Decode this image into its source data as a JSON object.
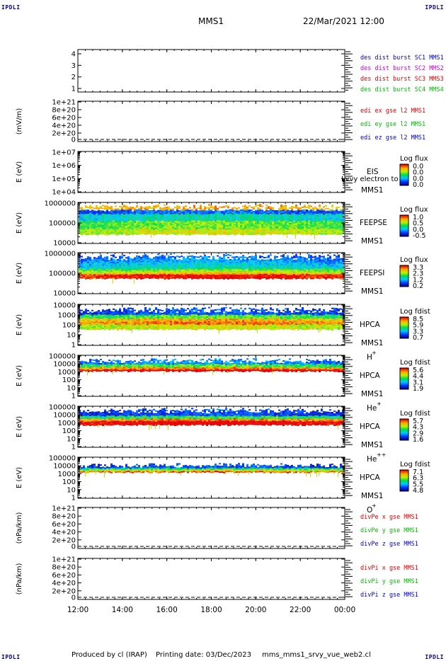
{
  "corner_labels": [
    "IPDLI",
    "IPDLI",
    "IPDLI",
    "IPDLI"
  ],
  "header": {
    "spacecraft": "MMS1",
    "datetime": "22/Mar/2021 12:00"
  },
  "footer": {
    "produced_by": "Produced by cl (IRAP)",
    "printing_date": "Printing date: 03/Dec/2023",
    "script": "mms_mms1_srvy_vue_web2.cl"
  },
  "colors": {
    "blue": "#0000cc",
    "magenta": "#cc00cc",
    "red": "#dd0000",
    "green": "#00bb00"
  },
  "chart_data": {
    "type": "heatmap",
    "x_tick_labels": [
      "12:00",
      "14:00",
      "16:00",
      "18:00",
      "20:00",
      "22:00",
      "00:00"
    ],
    "x_range_hours": [
      12,
      24
    ],
    "panels": [
      {
        "id": "p1",
        "kind": "line",
        "ylabel": "",
        "ytick_labels": [
          "4",
          "3",
          "2",
          "1"
        ],
        "legend": [
          {
            "text": "des dist burst SC1 MMS1",
            "color": "#0000cc"
          },
          {
            "text": "des dist burst SC2 MMS2",
            "color": "#cc00cc"
          },
          {
            "text": "des dist burst SC3 MMS3",
            "color": "#dd0000"
          },
          {
            "text": "des dist burst SC4 MMS4",
            "color": "#00bb00"
          }
        ]
      },
      {
        "id": "p2",
        "kind": "line",
        "ylabel": "(mV/m)",
        "ytick_labels": [
          "1e+21",
          "8e+20",
          "6e+20",
          "4e+20",
          "2e+20",
          "0"
        ],
        "zero_line": true,
        "legend": [
          {
            "text": "edi ex gse l2 MMS1",
            "color": "#dd0000"
          },
          {
            "text": "edi ey gse l2 MMS1",
            "color": "#00bb00"
          },
          {
            "text": "edi ez gse l2 MMS1",
            "color": "#0000cc"
          }
        ]
      },
      {
        "id": "p3",
        "kind": "spec",
        "ylabel": "E (eV)",
        "ytick_labels": [
          "1e+07",
          "1e+06",
          "1e+05",
          "1e+04"
        ],
        "name": "EIS",
        "name2": "MMS1",
        "overlay": "Lvvy electron to",
        "cbar_title": "Log flux",
        "cbar_labels": [
          "0.0",
          "0.0",
          "0.0",
          "0.0"
        ],
        "band": null
      },
      {
        "id": "p4",
        "kind": "spec",
        "ylabel": "E (eV)",
        "ytick_labels": [
          "1000000",
          "100000",
          "10000"
        ],
        "name": "FEEPSE",
        "name2": "MMS1",
        "cbar_title": "Log flux",
        "cbar_labels": [
          "1.0",
          "0.5",
          "0.0",
          "-0.5"
        ],
        "band": {
          "top": 0.1,
          "bottom": 0.77,
          "style": "feepse"
        }
      },
      {
        "id": "p5",
        "kind": "spec",
        "ylabel": "E (eV)",
        "ytick_labels": [
          "1000000",
          "100000",
          "10000"
        ],
        "name": "FEEPSI",
        "name2": "MMS1",
        "cbar_title": "Log flux",
        "cbar_labels": [
          "3.3",
          "2.3",
          "1.2",
          "0.2"
        ],
        "band": {
          "top": 0.08,
          "bottom": 0.62,
          "style": "feepsi"
        }
      },
      {
        "id": "p6",
        "kind": "spec",
        "ylabel": "E (eV)",
        "ytick_labels": [
          "10000",
          "1000",
          "100",
          "10",
          "1"
        ],
        "name": "HPCA",
        "name2": "MMS1",
        "ion": "H",
        "charge": "+",
        "cbar_title": "Log fdist",
        "cbar_labels": [
          "8.5",
          "5.9",
          "3.3",
          "0.7"
        ],
        "band": {
          "top": 0.12,
          "bottom": 0.6,
          "style": "hplus"
        }
      },
      {
        "id": "p7",
        "kind": "spec",
        "ylabel": "E (eV)",
        "ytick_labels": [
          "100000",
          "10000",
          "1000",
          "100",
          "10",
          "1"
        ],
        "name": "HPCA",
        "name2": "MMS1",
        "ion": "He",
        "charge": "+",
        "cbar_title": "Log fdist",
        "cbar_labels": [
          "5.6",
          "4.4",
          "3.1",
          "1.9"
        ],
        "band": {
          "top": 0.13,
          "bottom": 0.38,
          "style": "heplus"
        }
      },
      {
        "id": "p8",
        "kind": "spec",
        "ylabel": "E (eV)",
        "ytick_labels": [
          "100000",
          "10000",
          "1000",
          "100",
          "10",
          "1"
        ],
        "name": "HPCA",
        "name2": "MMS1",
        "ion": "He",
        "charge": "++",
        "cbar_title": "Log fdist",
        "cbar_labels": [
          "5.7",
          "4.3",
          "2.9",
          "1.6"
        ],
        "band": {
          "top": 0.1,
          "bottom": 0.45,
          "style": "heplusplus"
        }
      },
      {
        "id": "p9",
        "kind": "spec",
        "ylabel": "E (eV)",
        "ytick_labels": [
          "100000",
          "10000",
          "1000",
          "100",
          "10",
          "1"
        ],
        "name": "HPCA",
        "name2": "MMS1",
        "ion": "O",
        "charge": "+",
        "cbar_title": "Log fdist",
        "cbar_labels": [
          "7.1",
          "6.3",
          "5.5",
          "4.8"
        ],
        "band": {
          "top": 0.2,
          "bottom": 0.36,
          "style": "oplus"
        }
      },
      {
        "id": "p10",
        "kind": "line",
        "ylabel": "(nPa/km)",
        "ytick_labels": [
          "1e+21",
          "8e+20",
          "6e+20",
          "4e+20",
          "2e+20",
          "0"
        ],
        "zero_line": true,
        "legend": [
          {
            "text": "divPe x gse MMS1",
            "color": "#dd0000"
          },
          {
            "text": "divPe y gse MMS1",
            "color": "#00bb00"
          },
          {
            "text": "divPe z gse MMS1",
            "color": "#0000cc"
          }
        ]
      },
      {
        "id": "p11",
        "kind": "line",
        "ylabel": "(nPa/km)",
        "ytick_labels": [
          "1e+21",
          "8e+20",
          "6e+20",
          "4e+20",
          "2e+20",
          "0"
        ],
        "zero_line": true,
        "legend": [
          {
            "text": "divPi x gse MMS1",
            "color": "#dd0000"
          },
          {
            "text": "divPi y gse MMS1",
            "color": "#00bb00"
          },
          {
            "text": "divPi z gse MMS1",
            "color": "#0000cc"
          }
        ]
      }
    ]
  }
}
